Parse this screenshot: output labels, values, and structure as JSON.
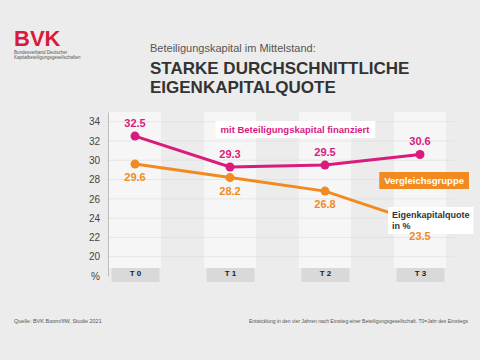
{
  "chart_data": {
    "type": "line",
    "subtitle": "Beteiligungskapital im Mittelstand:",
    "title": "STARKE DURCHSCHNITTLICHE EIGENKAPITALQUOTE",
    "logo": "BVK",
    "logo_text": "Bundesverband Deutscher Kapitalbeteiligungsgesellschaften",
    "annotations": [
      "Eigenkapitalquote in %"
    ],
    "source": "Quelle: BVK Boom/IfW, Studie 2021",
    "footnote": "Entwicklung in den vier Jahren nach Einstieg einer Beteiligungsgesellschaft. T0=Jahr des Einstiegs",
    "categories": [
      "T 0",
      "T 1",
      "T 2",
      "T 3"
    ],
    "series": [
      {
        "name": "mit Beteiligungskapital finanziert",
        "color": "#d81b7d",
        "marker": "circle",
        "values": [
          32.5,
          29.3,
          29.5,
          30.6
        ]
      },
      {
        "name": "Vergleichsgruppe",
        "color": "#f18a1f",
        "marker": "circle",
        "values": [
          29.6,
          28.2,
          26.8,
          23.5
        ]
      }
    ],
    "ylim": [
      18,
      35
    ],
    "yticks": [
      {
        "value": 18,
        "label": "%"
      },
      20,
      22,
      24,
      26,
      28,
      30,
      32,
      34
    ],
    "grid": true,
    "data_labels": true
  }
}
